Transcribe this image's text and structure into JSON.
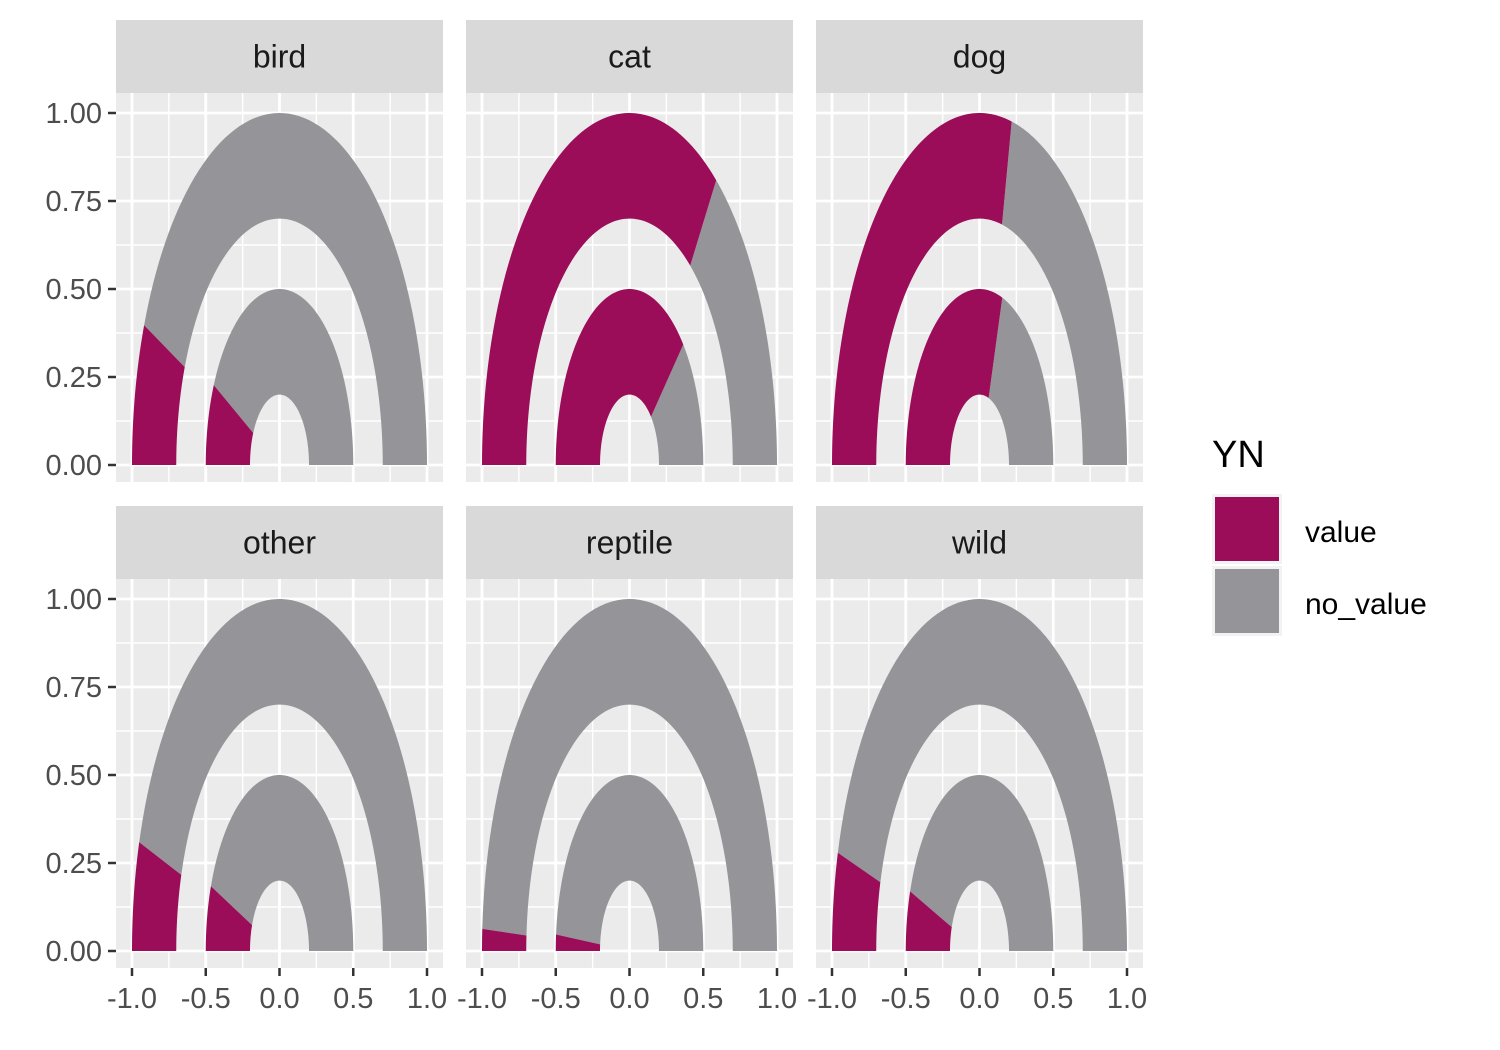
{
  "chart_data": {
    "type": "area",
    "facet_variable": "panel",
    "panels": [
      {
        "label": "bird",
        "outer_value_fraction": 0.13,
        "inner_value_fraction": 0.15
      },
      {
        "label": "cat",
        "outer_value_fraction": 0.7,
        "inner_value_fraction": 0.76
      },
      {
        "label": "dog",
        "outer_value_fraction": 0.57,
        "inner_value_fraction": 0.6
      },
      {
        "label": "other",
        "outer_value_fraction": 0.1,
        "inner_value_fraction": 0.12
      },
      {
        "label": "reptile",
        "outer_value_fraction": 0.02,
        "inner_value_fraction": 0.03
      },
      {
        "label": "wild",
        "outer_value_fraction": 0.09,
        "inner_value_fraction": 0.11
      }
    ],
    "rings": {
      "outer": {
        "r_in": 0.7,
        "r_out": 1.0
      },
      "inner": {
        "r_in": 0.2,
        "r_out": 0.5
      }
    },
    "xlim": [
      -1.0,
      1.0
    ],
    "ylim": [
      0.0,
      1.0
    ],
    "x_ticks": [
      "-1.0",
      "-0.5",
      "0.0",
      "0.5",
      "1.0"
    ],
    "x_tick_values": [
      -1.0,
      -0.5,
      0.0,
      0.5,
      1.0
    ],
    "y_ticks": [
      "0.00",
      "0.25",
      "0.50",
      "0.75",
      "1.00"
    ],
    "y_tick_values": [
      0.0,
      0.25,
      0.5,
      0.75,
      1.0
    ],
    "grid": true,
    "legend": {
      "title": "YN",
      "position": "right",
      "entries": [
        {
          "label": "value",
          "color": "#9b0d58"
        },
        {
          "label": "no_value",
          "color": "#959499"
        }
      ]
    }
  },
  "colors": {
    "panel_bg": "#ebebeb",
    "grid": "#ffffff",
    "strip_bg": "#d9d9d9",
    "tick": "#333333"
  }
}
